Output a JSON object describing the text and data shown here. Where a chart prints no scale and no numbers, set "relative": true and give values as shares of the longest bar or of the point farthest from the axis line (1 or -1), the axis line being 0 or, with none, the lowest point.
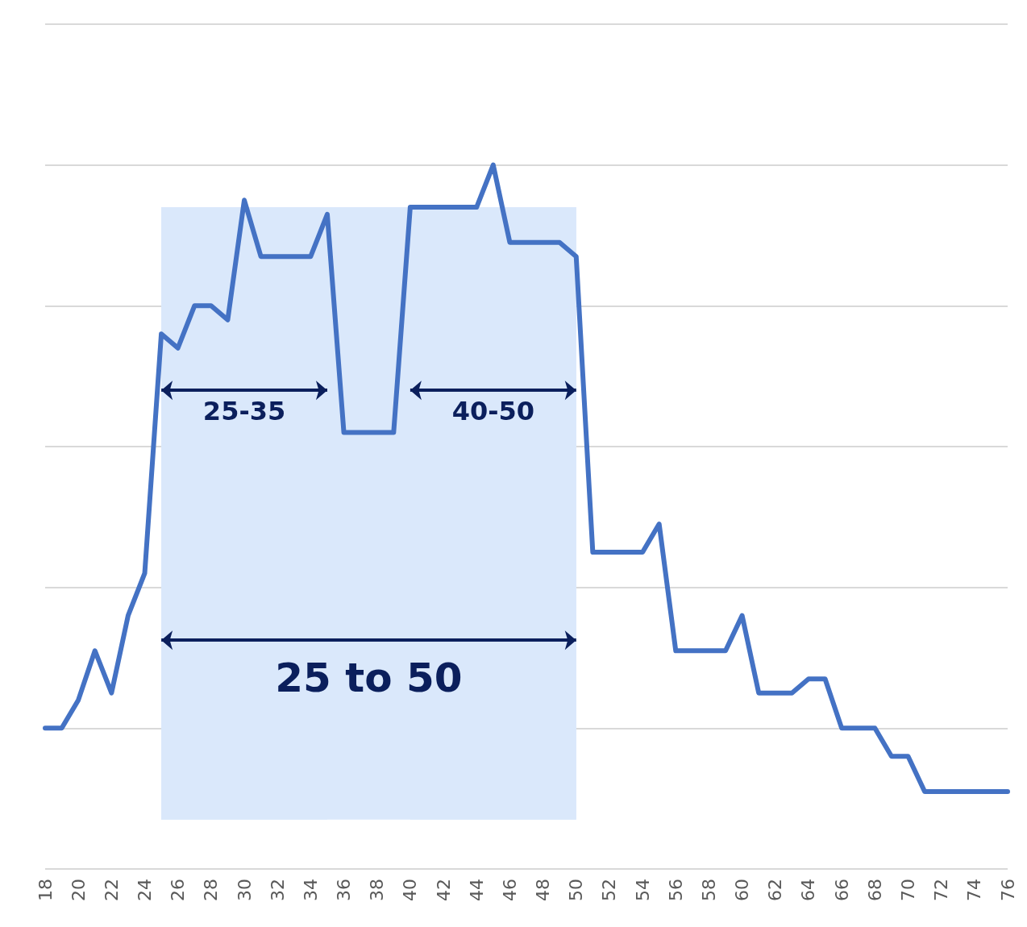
{
  "chart_data": {
    "type": "line",
    "relative": true,
    "grid": "y",
    "marker": "none",
    "line_style": "solid",
    "x": [
      18,
      19,
      20,
      21,
      22,
      23,
      24,
      25,
      26,
      27,
      28,
      29,
      30,
      31,
      32,
      33,
      34,
      35,
      36,
      37,
      38,
      39,
      40,
      41,
      42,
      43,
      44,
      45,
      46,
      47,
      48,
      49,
      50,
      51,
      52,
      53,
      54,
      55,
      56,
      57,
      58,
      59,
      60,
      61,
      62,
      63,
      64,
      65,
      66,
      67,
      68,
      69,
      70,
      71,
      72,
      73,
      74,
      75,
      76
    ],
    "series": [
      {
        "color": "#4472c4",
        "values": [
          0.2,
          0.2,
          0.24,
          0.31,
          0.25,
          0.36,
          0.42,
          0.76,
          0.74,
          0.8,
          0.8,
          0.78,
          0.95,
          0.87,
          0.87,
          0.87,
          0.87,
          0.93,
          0.62,
          0.62,
          0.62,
          0.62,
          0.94,
          0.94,
          0.94,
          0.94,
          0.94,
          1,
          0.89,
          0.89,
          0.89,
          0.89,
          0.87,
          0.45,
          0.45,
          0.45,
          0.45,
          0.49,
          0.31,
          0.31,
          0.31,
          0.31,
          0.36,
          0.25,
          0.25,
          0.25,
          0.27,
          0.27,
          0.2,
          0.2,
          0.2,
          0.16,
          0.16,
          0.11,
          0.11,
          0.11,
          0.11,
          0.11,
          0.11
        ]
      }
    ],
    "xlim": [
      18,
      76
    ],
    "xticks": [
      18,
      20,
      22,
      24,
      26,
      28,
      30,
      32,
      34,
      36,
      38,
      40,
      42,
      44,
      46,
      48,
      50,
      52,
      54,
      56,
      58,
      60,
      62,
      64,
      66,
      68,
      70,
      72,
      74,
      76
    ],
    "bands": [
      {
        "axis": "x",
        "from": 25,
        "to": 50,
        "label": "25 to 50",
        "color": "#dae8fb"
      },
      {
        "axis": "x",
        "from": 25,
        "to": 35,
        "label": "25-35",
        "color": "#dae8fb"
      },
      {
        "axis": "x",
        "from": 40,
        "to": 50,
        "label": "40-50",
        "color": "#dae8fb"
      }
    ]
  }
}
